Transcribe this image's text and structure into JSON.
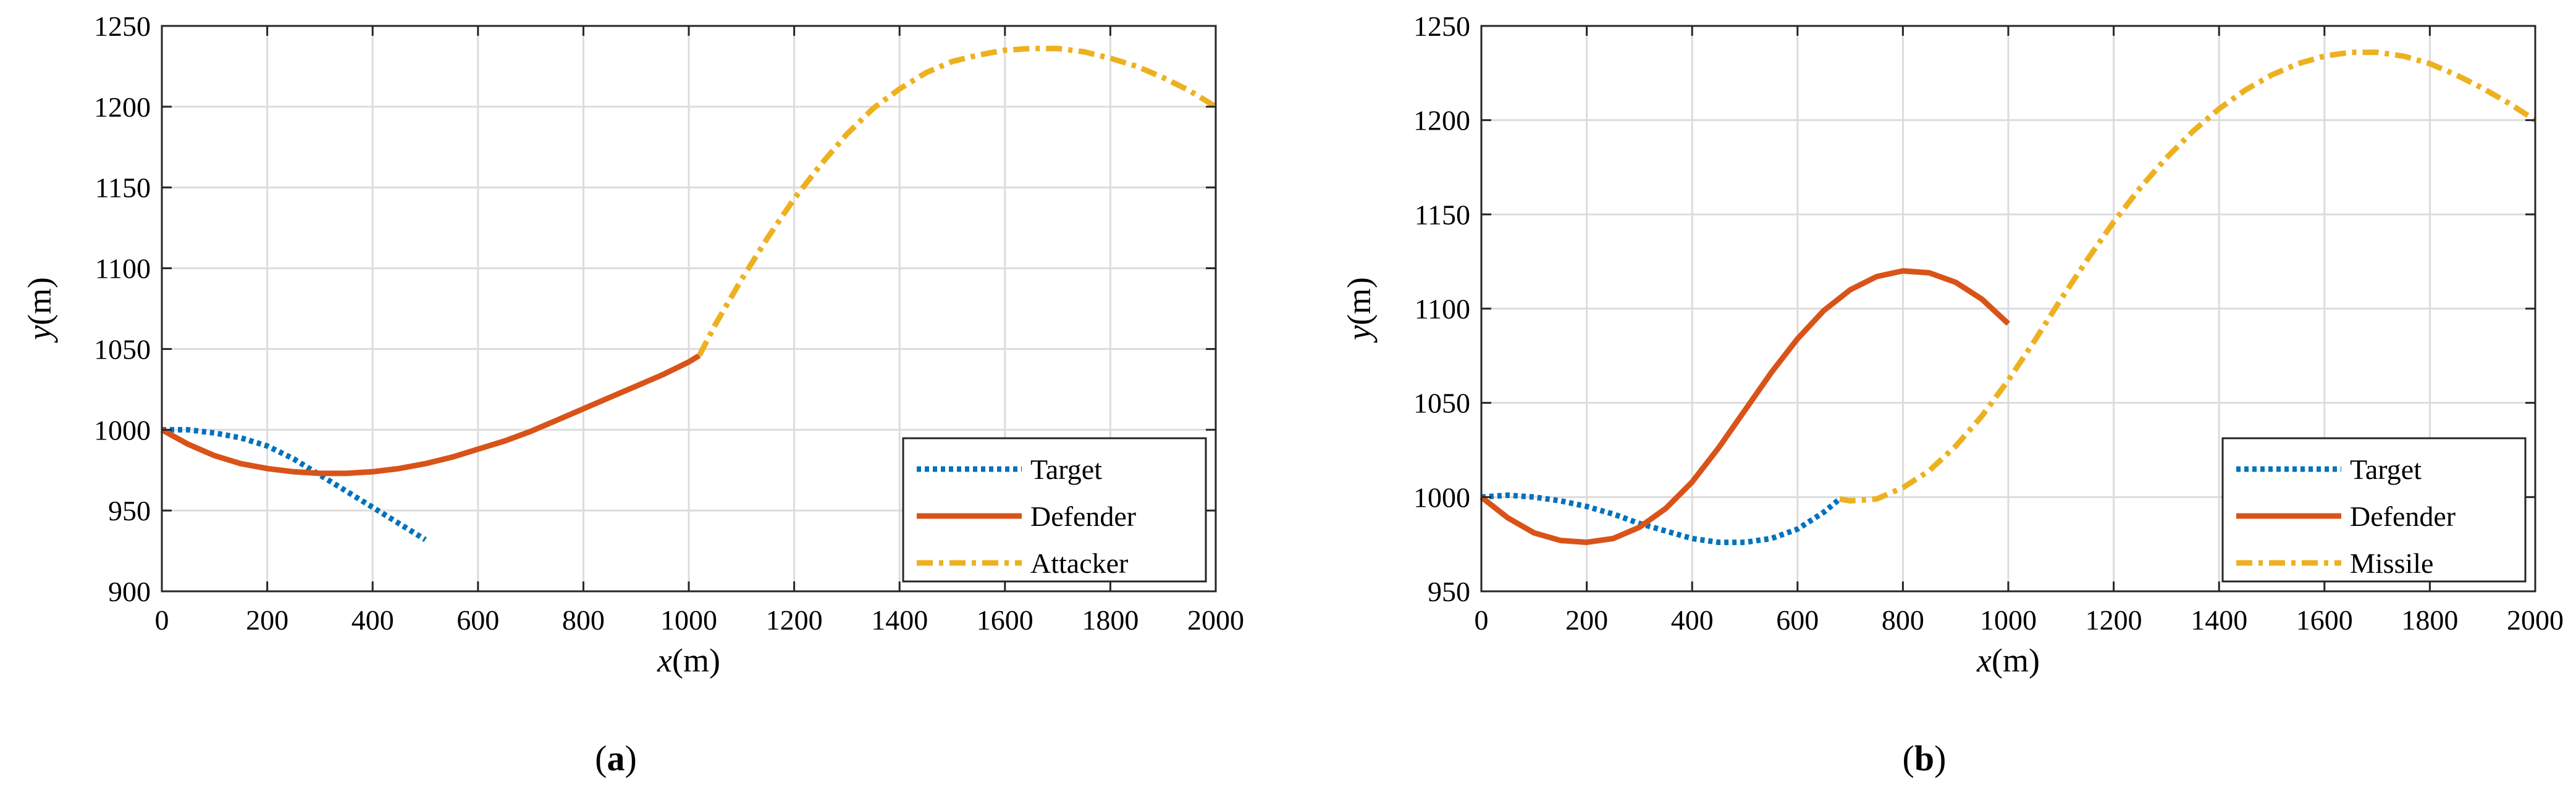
{
  "chart_data": [
    {
      "type": "line",
      "panel_label": "a",
      "title": "",
      "xlabel_var": "x",
      "xlabel_unit": "(m)",
      "ylabel_var": "y",
      "ylabel_unit": "(m)",
      "xlim": [
        0,
        2000
      ],
      "ylim": [
        900,
        1250
      ],
      "xticks": [
        0,
        200,
        400,
        600,
        800,
        1000,
        1200,
        1400,
        1600,
        1800,
        2000
      ],
      "yticks": [
        900,
        950,
        1000,
        1050,
        1100,
        1150,
        1200,
        1250
      ],
      "grid": true,
      "legend_position": "bottom-right",
      "series": [
        {
          "name": "Target",
          "color": "#0072BD",
          "style": "dotted",
          "x": [
            0,
            50,
            100,
            150,
            200,
            250,
            300,
            350,
            400,
            450,
            500
          ],
          "y": [
            1000,
            1000,
            998,
            995,
            990,
            982,
            972,
            962,
            952,
            942,
            932
          ]
        },
        {
          "name": "Defender",
          "color": "#D95319",
          "style": "solid",
          "x": [
            0,
            50,
            100,
            150,
            200,
            250,
            300,
            350,
            400,
            450,
            500,
            550,
            600,
            650,
            700,
            750,
            800,
            850,
            900,
            950,
            1000,
            1020
          ],
          "y": [
            1000,
            991,
            984,
            979,
            976,
            974,
            973,
            973,
            974,
            976,
            979,
            983,
            988,
            993,
            999,
            1006,
            1013,
            1020,
            1027,
            1034,
            1042,
            1046
          ]
        },
        {
          "name": "Attacker",
          "color": "#EDB120",
          "style": "dashdot",
          "x": [
            1020,
            1050,
            1100,
            1150,
            1200,
            1250,
            1300,
            1350,
            1400,
            1450,
            1500,
            1550,
            1600,
            1650,
            1700,
            1750,
            1800,
            1850,
            1900,
            1950,
            2000
          ],
          "y": [
            1046,
            1065,
            1093,
            1119,
            1143,
            1164,
            1183,
            1199,
            1211,
            1221,
            1228,
            1232,
            1235,
            1236,
            1236,
            1234,
            1230,
            1225,
            1218,
            1210,
            1200
          ]
        }
      ]
    },
    {
      "type": "line",
      "panel_label": "b",
      "title": "",
      "xlabel_var": "x",
      "xlabel_unit": "(m)",
      "ylabel_var": "y",
      "ylabel_unit": "(m)",
      "xlim": [
        0,
        2000
      ],
      "ylim": [
        950,
        1250
      ],
      "xticks": [
        0,
        200,
        400,
        600,
        800,
        1000,
        1200,
        1400,
        1600,
        1800,
        2000
      ],
      "yticks": [
        950,
        1000,
        1050,
        1100,
        1150,
        1200,
        1250
      ],
      "grid": true,
      "legend_position": "bottom-right",
      "series": [
        {
          "name": "Target",
          "color": "#0072BD",
          "style": "dotted",
          "x": [
            0,
            50,
            100,
            150,
            200,
            250,
            300,
            350,
            400,
            450,
            500,
            550,
            600,
            650,
            680
          ],
          "y": [
            1000,
            1001,
            1000,
            998,
            995,
            991,
            986,
            982,
            978,
            976,
            976,
            978,
            983,
            992,
            999
          ]
        },
        {
          "name": "Defender",
          "color": "#D95319",
          "style": "solid",
          "x": [
            0,
            50,
            100,
            150,
            200,
            250,
            300,
            350,
            400,
            450,
            500,
            550,
            600,
            650,
            700,
            750,
            800,
            850,
            900,
            950,
            1000
          ],
          "y": [
            1000,
            989,
            981,
            977,
            976,
            978,
            984,
            994,
            1008,
            1026,
            1046,
            1066,
            1084,
            1099,
            1110,
            1117,
            1120,
            1119,
            1114,
            1105,
            1092
          ]
        },
        {
          "name": "Missile",
          "color": "#EDB120",
          "style": "dashdot",
          "x": [
            680,
            700,
            750,
            800,
            850,
            900,
            950,
            1000,
            1050,
            1100,
            1150,
            1200,
            1250,
            1300,
            1350,
            1400,
            1450,
            1500,
            1550,
            1600,
            1650,
            1700,
            1750,
            1800,
            1850,
            1900,
            1950,
            2000
          ],
          "y": [
            999,
            998,
            999,
            1005,
            1014,
            1027,
            1043,
            1062,
            1083,
            1105,
            1126,
            1146,
            1164,
            1180,
            1194,
            1206,
            1216,
            1224,
            1230,
            1234,
            1236,
            1236,
            1234,
            1230,
            1224,
            1217,
            1209,
            1200
          ]
        }
      ]
    }
  ]
}
